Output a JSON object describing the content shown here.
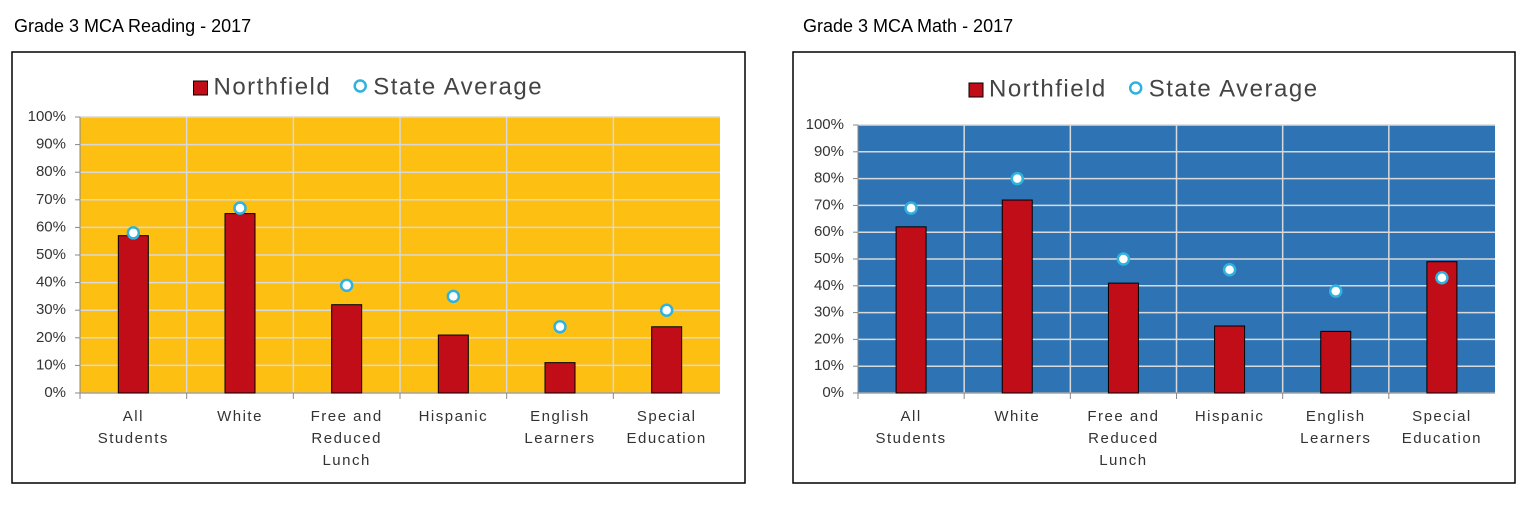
{
  "chart_data": [
    {
      "type": "bar",
      "title": "Grade 3 MCA Reading - 2017",
      "categories": [
        "All Students",
        "White",
        "Free and Reduced Lunch",
        "Hispanic",
        "English Learners",
        "Special Education"
      ],
      "series": [
        {
          "name": "Northfield",
          "type": "bar",
          "color": "#c00d18",
          "values": [
            57,
            65,
            32,
            21,
            11,
            24
          ]
        },
        {
          "name": "State Average",
          "type": "marker",
          "color": "#2fb3de",
          "values": [
            58,
            67,
            39,
            35,
            24,
            30
          ]
        }
      ],
      "ylim": [
        0,
        100
      ],
      "yticks": [
        {
          "value": 0,
          "label": "0%"
        },
        {
          "value": 10,
          "label": "10%"
        },
        {
          "value": 20,
          "label": "20%"
        },
        {
          "value": 30,
          "label": "30%"
        },
        {
          "value": 40,
          "label": "40%"
        },
        {
          "value": 50,
          "label": "50%"
        },
        {
          "value": 60,
          "label": "60%"
        },
        {
          "value": 70,
          "label": "70%"
        },
        {
          "value": 80,
          "label": "80%"
        },
        {
          "value": 90,
          "label": "90%"
        },
        {
          "value": 100,
          "label": "100%"
        }
      ],
      "grid": true,
      "plot_background": "#fdbf11",
      "legend": "top"
    },
    {
      "type": "bar",
      "title": "Grade 3 MCA Math - 2017",
      "categories": [
        "All Students",
        "White",
        "Free and Reduced Lunch",
        "Hispanic",
        "English Learners",
        "Special Education"
      ],
      "series": [
        {
          "name": "Northfield",
          "type": "bar",
          "color": "#c00d18",
          "values": [
            62,
            72,
            41,
            25,
            23,
            49
          ]
        },
        {
          "name": "State Average",
          "type": "marker",
          "color": "#2fb3de",
          "values": [
            69,
            80,
            50,
            46,
            38,
            43
          ]
        }
      ],
      "ylim": [
        0,
        100
      ],
      "yticks": [
        {
          "value": 0,
          "label": "0%"
        },
        {
          "value": 10,
          "label": "10%"
        },
        {
          "value": 20,
          "label": "20%"
        },
        {
          "value": 30,
          "label": "30%"
        },
        {
          "value": 40,
          "label": "40%"
        },
        {
          "value": 50,
          "label": "50%"
        },
        {
          "value": 60,
          "label": "60%"
        },
        {
          "value": 70,
          "label": "70%"
        },
        {
          "value": 80,
          "label": "80%"
        },
        {
          "value": 90,
          "label": "90%"
        },
        {
          "value": 100,
          "label": "100%"
        }
      ],
      "grid": true,
      "plot_background": "#2e74b5",
      "legend": "top"
    }
  ]
}
